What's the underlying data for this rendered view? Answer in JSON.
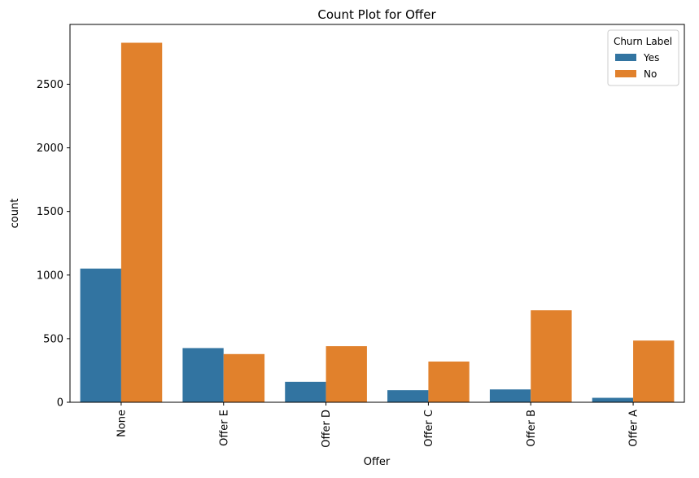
{
  "chart_data": {
    "type": "bar",
    "title": "Count Plot for Offer",
    "xlabel": "Offer",
    "ylabel": "count",
    "categories": [
      "None",
      "Offer E",
      "Offer D",
      "Offer C",
      "Offer B",
      "Offer A"
    ],
    "series": [
      {
        "name": "Yes",
        "color": "#3274a1",
        "values": [
          1051,
          426,
          161,
          95,
          101,
          35
        ]
      },
      {
        "name": "No",
        "color": "#e1812c",
        "values": [
          2826,
          379,
          441,
          320,
          723,
          485
        ]
      }
    ],
    "ylim": [
      0,
      2970
    ],
    "yticks": [
      0,
      500,
      1000,
      1500,
      2000,
      2500
    ],
    "grid": false,
    "legend": {
      "title": "Churn Label",
      "placement": "top-right"
    }
  }
}
